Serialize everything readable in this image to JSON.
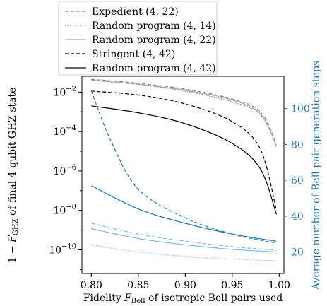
{
  "chart_data": {
    "type": "line",
    "xlabel": "Fidelity F_Bell of isotropic Bell pairs used",
    "ylabel_left": "1 − F_GHZ of final 4-qubit GHZ state",
    "ylabel_right": "Average number of Bell pair generation steps",
    "xlim": [
      0.79,
      1.005
    ],
    "ylim_left_log10": [
      -11.2,
      -1.2
    ],
    "ylim_right": [
      8,
      118
    ],
    "x_ticks": [
      "0.80",
      "0.85",
      "0.90",
      "0.95",
      "1.00"
    ],
    "y_left_ticks": [
      {
        "exp": -2,
        "label": "10",
        "sup": "−2"
      },
      {
        "exp": -4,
        "label": "10",
        "sup": "−4"
      },
      {
        "exp": -6,
        "label": "10",
        "sup": "−6"
      },
      {
        "exp": -8,
        "label": "10",
        "sup": "−8"
      },
      {
        "exp": -10,
        "label": "10",
        "sup": "−10"
      }
    ],
    "y_right_ticks": [
      "20",
      "40",
      "60",
      "80",
      "100"
    ],
    "legend_position": "top (above plot)",
    "legend": [
      {
        "label": "Expedient (4, 22)",
        "style": "dashed",
        "color": "#888888"
      },
      {
        "label": "Random program (4, 14)",
        "style": "dotted",
        "color": "#888888"
      },
      {
        "label": "Random program (4, 22)",
        "style": "solid",
        "color": "#aaaaaa"
      },
      {
        "label": "Stringent (4, 42)",
        "style": "dashed",
        "color": "#000000"
      },
      {
        "label": "Random program (4, 42)",
        "style": "solid",
        "color": "#000000"
      }
    ],
    "series_left": [
      {
        "name": "Expedient (4, 22)",
        "style": "dashed",
        "color": "#888888",
        "x": [
          0.8,
          0.85,
          0.9,
          0.95,
          0.98,
          0.997
        ],
        "y_log10": [
          -1.35,
          -1.55,
          -1.85,
          -2.35,
          -3.0,
          -4.6
        ]
      },
      {
        "name": "Random program (4, 14)",
        "style": "dotted",
        "color": "#888888",
        "x": [
          0.8,
          0.85,
          0.9,
          0.95,
          0.98,
          0.997
        ],
        "y_log10": [
          -1.38,
          -1.62,
          -1.95,
          -2.5,
          -3.15,
          -4.8
        ]
      },
      {
        "name": "Random program (4, 22)",
        "style": "solid",
        "color": "#aaaaaa",
        "x": [
          0.8,
          0.85,
          0.9,
          0.95,
          0.98,
          0.997
        ],
        "y_log10": [
          -1.4,
          -1.6,
          -1.9,
          -2.4,
          -3.1,
          -4.7
        ]
      },
      {
        "name": "Stringent (4, 42)",
        "style": "dashed",
        "color": "#000000",
        "x": [
          0.8,
          0.85,
          0.9,
          0.95,
          0.98,
          0.997
        ],
        "y_log10": [
          -1.95,
          -2.15,
          -2.6,
          -3.5,
          -4.9,
          -8.0
        ]
      },
      {
        "name": "Random program (4, 42)",
        "style": "solid",
        "color": "#000000",
        "x": [
          0.8,
          0.85,
          0.9,
          0.95,
          0.98,
          0.997
        ],
        "y_log10": [
          -2.7,
          -3.05,
          -3.6,
          -4.6,
          -5.9,
          -8.2
        ]
      }
    ],
    "series_right": [
      {
        "style": "dashed",
        "color": "#1f77b4",
        "x": [
          0.8,
          0.82,
          0.85,
          0.9,
          0.95,
          0.997
        ],
        "y": [
          110,
          83,
          55,
          39,
          30,
          25
        ]
      },
      {
        "style": "solid",
        "color": "#1f77b4",
        "x": [
          0.8,
          0.85,
          0.9,
          0.95,
          0.997
        ],
        "y": [
          57,
          44,
          36,
          30,
          26
        ]
      },
      {
        "style": "dashed",
        "color": "#7fb8e0",
        "x": [
          0.8,
          0.85,
          0.9,
          0.95,
          0.997
        ],
        "y": [
          36,
          30,
          26,
          23,
          21
        ]
      },
      {
        "style": "solid",
        "color": "#7fb8e0",
        "x": [
          0.8,
          0.85,
          0.9,
          0.95,
          0.997
        ],
        "y": [
          33,
          27.5,
          24,
          21.5,
          20
        ]
      },
      {
        "style": "dotted",
        "color": "#7fb8e0",
        "x": [
          0.8,
          0.85,
          0.9,
          0.95,
          0.997
        ],
        "y": [
          24,
          20,
          17.5,
          16,
          15
        ]
      }
    ]
  }
}
